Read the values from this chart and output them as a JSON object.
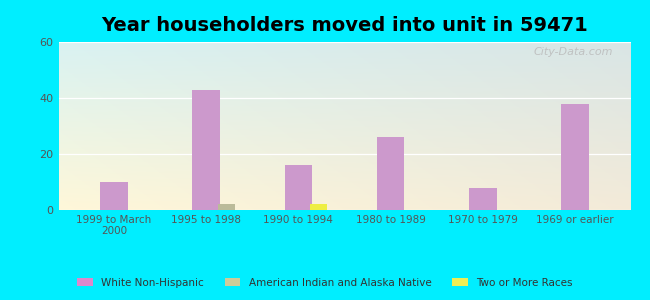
{
  "title": "Year householders moved into unit in 59471",
  "categories": [
    "1999 to March\n2000",
    "1995 to 1998",
    "1990 to 1994",
    "1980 to 1989",
    "1970 to 1979",
    "1969 or earlier"
  ],
  "series": {
    "White Non-Hispanic": {
      "values": [
        10,
        43,
        16,
        26,
        8,
        38
      ],
      "color": "#cc99cc",
      "offsets": [
        0,
        0,
        0,
        0,
        0,
        0
      ]
    },
    "American Indian and Alaska Native": {
      "values": [
        0,
        2,
        0,
        0,
        0,
        0
      ],
      "color": "#bbbb99",
      "offsets": [
        0.22,
        0.22,
        0.22,
        0.22,
        0.22,
        0.22
      ]
    },
    "Two or More Races": {
      "values": [
        0,
        0,
        2,
        0,
        0,
        0
      ],
      "color": "#eeee44",
      "offsets": [
        0.22,
        0.22,
        0.22,
        0.22,
        0.22,
        0.22
      ]
    }
  },
  "ylim": [
    0,
    60
  ],
  "yticks": [
    0,
    20,
    40,
    60
  ],
  "outer_bg": "#00eeff",
  "bar_width": 0.18,
  "main_bar_width": 0.3,
  "title_fontsize": 14,
  "watermark": "City-Data.com",
  "legend_marker_color_1": "#dd88cc",
  "legend_marker_color_2": "#cccc99",
  "legend_marker_color_3": "#eeee55"
}
